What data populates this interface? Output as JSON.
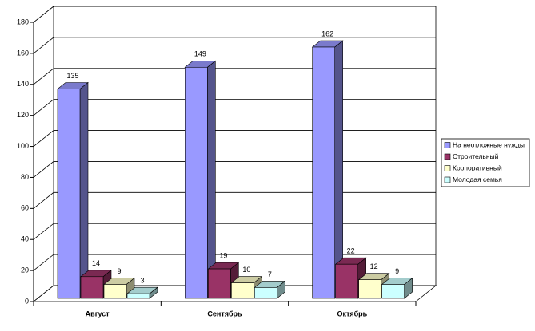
{
  "chart_data": {
    "type": "bar3d",
    "categories": [
      "Август",
      "Сентябрь",
      "Октябрь"
    ],
    "series": [
      {
        "name": "На неотложные нужды",
        "color": "#9999ff",
        "values": [
          135,
          149,
          162
        ]
      },
      {
        "name": "Строительный",
        "color": "#993366",
        "values": [
          14,
          19,
          22
        ]
      },
      {
        "name": "Корпоративный",
        "color": "#ffffcc",
        "values": [
          9,
          10,
          12
        ]
      },
      {
        "name": "Молодая семья",
        "color": "#ccffff",
        "values": [
          3,
          7,
          9
        ]
      }
    ],
    "ylim": [
      0,
      180
    ],
    "yticks": [
      0,
      20,
      40,
      60,
      80,
      100,
      120,
      140,
      160,
      180
    ],
    "grid": true,
    "legend": "right"
  }
}
